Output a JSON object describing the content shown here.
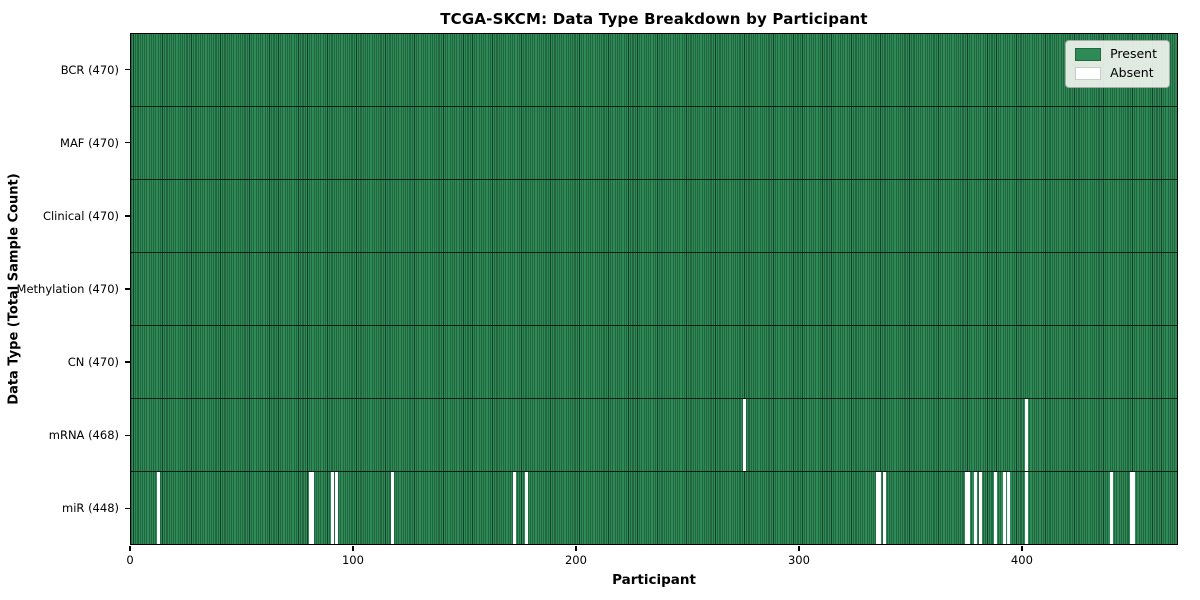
{
  "chart_data": {
    "type": "heatmap",
    "title": "TCGA-SKCM: Data Type Breakdown by Participant",
    "xlabel": "Participant",
    "ylabel": "Data Type (Total Sample Count)",
    "n_participants": 470,
    "x_ticks": [
      0,
      100,
      200,
      300,
      400
    ],
    "x_range": [
      0,
      470
    ],
    "grid": false,
    "legend_position": "upper-right",
    "legend": {
      "entries": [
        {
          "label": "Present",
          "color": "#2e8b57"
        },
        {
          "label": "Absent",
          "color": "#ffffff"
        }
      ]
    },
    "colors": {
      "present": "#2e8b57",
      "absent": "#ffffff",
      "cell_edge": "#17402a",
      "swatch_border_present": "#24663f",
      "swatch_border_absent": "#c9cdc7"
    },
    "rows": [
      {
        "label": "BCR (470)",
        "data_type": "BCR",
        "total_samples": 470,
        "missing_participants": []
      },
      {
        "label": "MAF (470)",
        "data_type": "MAF",
        "total_samples": 470,
        "missing_participants": []
      },
      {
        "label": "Clinical (470)",
        "data_type": "Clinical",
        "total_samples": 470,
        "missing_participants": []
      },
      {
        "label": "Methylation (470)",
        "data_type": "Methylation",
        "total_samples": 470,
        "missing_participants": []
      },
      {
        "label": "CN (470)",
        "data_type": "CN",
        "total_samples": 470,
        "missing_participants": []
      },
      {
        "label": "mRNA (468)",
        "data_type": "mRNA",
        "total_samples": 468,
        "missing_participants": [
          275,
          402
        ]
      },
      {
        "label": "miR (448)",
        "data_type": "miR",
        "total_samples": 448,
        "missing_participants": [
          12,
          80,
          81,
          90,
          92,
          117,
          172,
          177,
          335,
          336,
          338,
          375,
          376,
          379,
          381,
          388,
          392,
          394,
          402,
          440,
          449,
          450
        ]
      }
    ]
  }
}
